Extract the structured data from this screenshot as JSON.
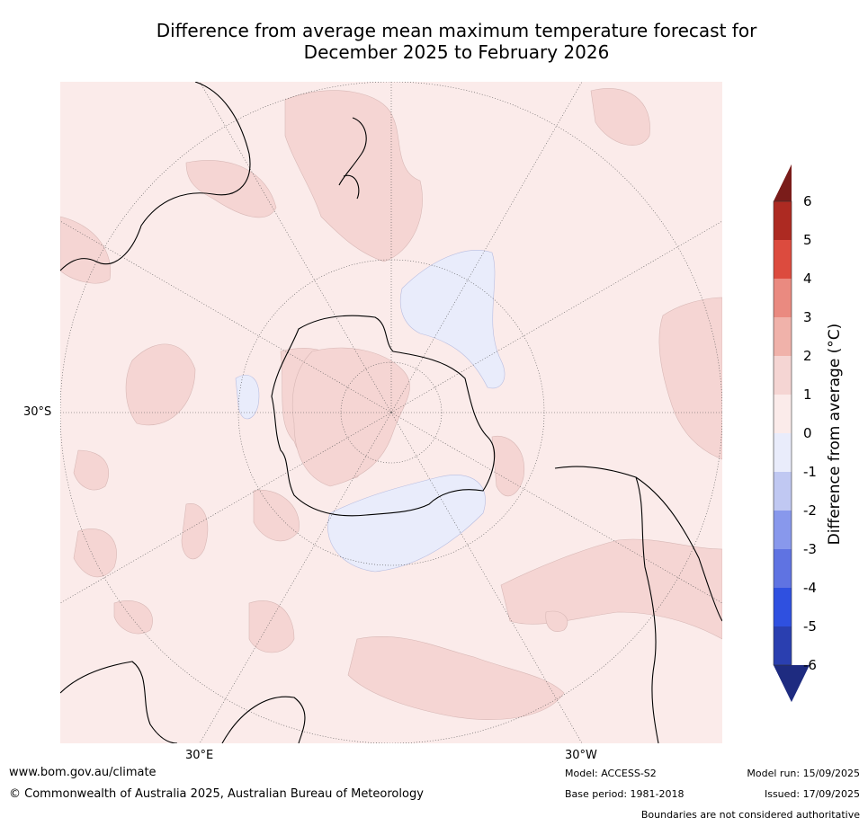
{
  "title_line1": "Difference from average mean maximum temperature forecast for",
  "title_line2": "December 2025 to February 2026",
  "labels": {
    "lat_30s": "30°S",
    "lon_30e": "30°E",
    "lon_30w": "30°W"
  },
  "colorbar": {
    "title": "Difference from average (°C)",
    "ticks": [
      "6",
      "5",
      "4",
      "3",
      "2",
      "1",
      "0",
      "-1",
      "-2",
      "-3",
      "-4",
      "-5",
      "-6"
    ],
    "colors": [
      "#7a1c1a",
      "#ad2a22",
      "#dc4b3e",
      "#ea8a80",
      "#f0b2aa",
      "#f5d5d3",
      "#fbebea",
      "#e9ecfb",
      "#c0c8f2",
      "#8898ec",
      "#5f73e2",
      "#2f50e0",
      "#2a3fb0",
      "#1e2b80"
    ]
  },
  "footer": {
    "website": "www.bom.gov.au/climate",
    "copyright": "© Commonwealth of Australia 2025, Australian Bureau of Meteorology",
    "model": "Model: ACCESS-S2",
    "base_period": "Base period: 1981-2018",
    "model_run": "Model run: 15/09/2025",
    "issued": "Issued: 17/09/2025",
    "disclaimer": "Boundaries are not considered authoritative"
  }
}
